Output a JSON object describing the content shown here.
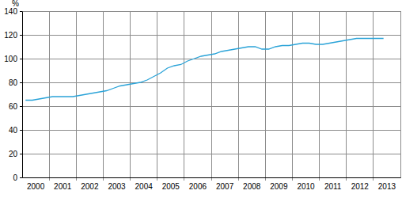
{
  "chart_data": {
    "type": "line",
    "y_label": "%",
    "categories": [
      "2000",
      null,
      null,
      null,
      "2001",
      null,
      null,
      null,
      "2002",
      null,
      null,
      null,
      "2003",
      null,
      null,
      null,
      "2004",
      null,
      null,
      null,
      "2005",
      null,
      null,
      null,
      "2006",
      null,
      null,
      null,
      "2007",
      null,
      null,
      null,
      "2008",
      null,
      null,
      null,
      "2009",
      null,
      null,
      null,
      "2010",
      null,
      null,
      null,
      "2011",
      null,
      null,
      null,
      "2012",
      null,
      null,
      null,
      "2013",
      null,
      null,
      null
    ],
    "values": [
      65,
      65,
      66,
      67,
      68,
      68,
      68,
      68,
      69,
      70,
      71,
      72,
      73,
      75,
      77,
      78,
      79,
      80,
      82,
      85,
      88,
      92,
      94,
      95,
      98,
      100,
      102,
      103,
      104,
      106,
      107,
      108,
      109,
      110,
      110,
      108,
      108,
      110,
      111,
      111,
      112,
      113,
      113,
      112,
      112,
      113,
      114,
      115,
      116,
      117,
      117,
      117,
      117,
      117,
      null,
      null
    ],
    "color": "#2aa3d8",
    "ylim": [
      0,
      140
    ],
    "yticks": [
      0,
      20,
      40,
      60,
      80,
      100,
      120,
      140
    ],
    "grid": true
  }
}
